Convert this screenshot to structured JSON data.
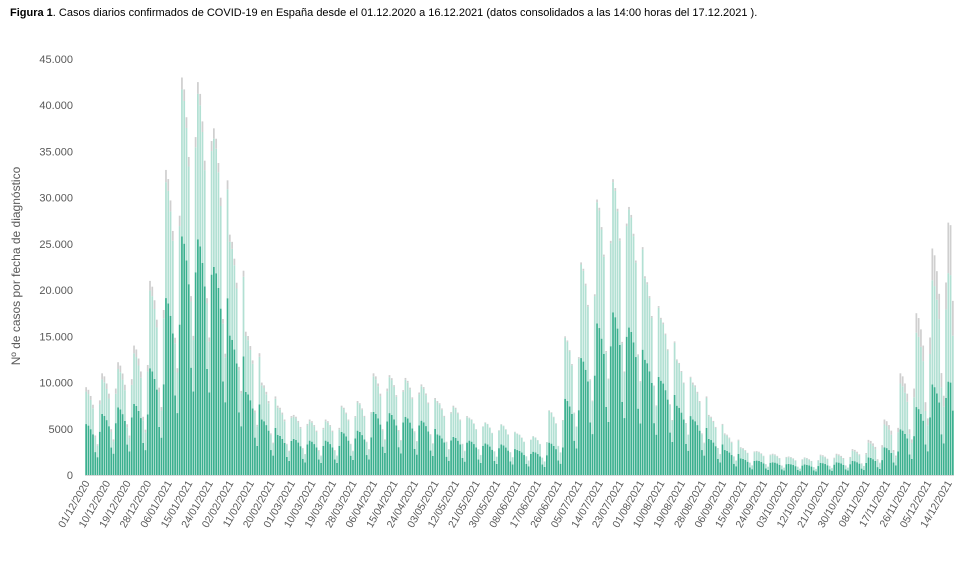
{
  "chart_data": {
    "type": "bar",
    "stacked": true,
    "title_bold": "Figura 1",
    "title": ". Casos diarios confirmados de COVID-19 en España desde el 01.12.2020 a 16.12.2021  (datos consolidados a las 14:00 horas del 17.12.2021 ).",
    "xlabel": "",
    "ylabel": "Nº de casos por fecha de diagnóstico",
    "ylim": [
      0,
      45000
    ],
    "grid": false,
    "legend": "none",
    "y_ticks": [
      0,
      5000,
      10000,
      15000,
      20000,
      25000,
      30000,
      35000,
      40000,
      45000
    ],
    "y_tick_labels": [
      "0",
      "5000",
      "10.000",
      "15.000",
      "20.000",
      "25.000",
      "30.000",
      "35.000",
      "40.000",
      "45.000"
    ],
    "x_start": "01/12/2020",
    "x_end": "16/12/2021",
    "n_days": 381,
    "x_tick_every_days": 9,
    "x_tick_labels": [
      "01/12/2020",
      "10/12/2020",
      "19/12/2020",
      "28/12/2020",
      "06/01/2021",
      "15/01/2021",
      "24/01/2021",
      "02/02/2021",
      "11/02/2021",
      "20/02/2021",
      "01/03/2021",
      "10/03/2021",
      "19/03/2021",
      "28/03/2021",
      "06/04/2021",
      "15/04/2021",
      "24/04/2021",
      "03/05/2021",
      "12/05/2021",
      "21/05/2021",
      "30/05/2021",
      "08/06/2021",
      "17/06/2021",
      "26/06/2021",
      "05/07/2021",
      "14/07/2021",
      "23/07/2021",
      "01/08/2021",
      "10/08/2021",
      "19/08/2021",
      "28/08/2021",
      "06/09/2021",
      "15/09/2021",
      "24/09/2021",
      "03/10/2021",
      "12/10/2021",
      "21/10/2021",
      "30/10/2021",
      "08/11/2021",
      "17/11/2021",
      "26/11/2021",
      "05/12/2021",
      "14/12/2021"
    ],
    "series_colors": [
      "#3bb08f",
      "#b2e0d3",
      "#cfcfcf"
    ],
    "weekly_peak_total": [
      9500,
      11000,
      12200,
      14000,
      21000,
      33000,
      43000,
      42500,
      37500,
      26000,
      15500,
      10000,
      7500,
      6500,
      6000,
      6000,
      7500,
      8000,
      11000,
      10800,
      10500,
      9800,
      8000,
      7500,
      6200,
      5700,
      5500,
      4500,
      4200,
      7000,
      15000,
      23000,
      29800,
      32000,
      29000,
      21500,
      17000,
      12500,
      10000,
      6500,
      4500,
      3000,
      2600,
      2300,
      2000,
      1900,
      2200,
      2300,
      2800,
      3800,
      6000,
      11000,
      17500,
      24500,
      27300
    ],
    "weekly_share_series1": [
      0.58,
      0.6,
      0.6,
      0.55,
      0.55,
      0.58,
      0.6,
      0.6,
      0.6,
      0.58,
      0.58,
      0.6,
      0.58,
      0.6,
      0.62,
      0.62,
      0.62,
      0.6,
      0.62,
      0.62,
      0.6,
      0.6,
      0.55,
      0.55,
      0.6,
      0.6,
      0.6,
      0.6,
      0.6,
      0.5,
      0.55,
      0.55,
      0.55,
      0.55,
      0.55,
      0.58,
      0.6,
      0.6,
      0.6,
      0.6,
      0.6,
      0.6,
      0.6,
      0.6,
      0.6,
      0.6,
      0.6,
      0.6,
      0.55,
      0.5,
      0.5,
      0.45,
      0.42,
      0.4,
      0.37
    ],
    "weekly_share_series3": [
      0.05,
      0.06,
      0.06,
      0.06,
      0.05,
      0.04,
      0.03,
      0.03,
      0.03,
      0.03,
      0.03,
      0.03,
      0.03,
      0.03,
      0.03,
      0.03,
      0.02,
      0.02,
      0.03,
      0.02,
      0.02,
      0.02,
      0.02,
      0.02,
      0.01,
      0.01,
      0.01,
      0.01,
      0.01,
      0.01,
      0.01,
      0.01,
      0.01,
      0.01,
      0.01,
      0.01,
      0.01,
      0.01,
      0.02,
      0.02,
      0.03,
      0.03,
      0.03,
      0.04,
      0.04,
      0.04,
      0.05,
      0.06,
      0.06,
      0.08,
      0.09,
      0.1,
      0.12,
      0.14,
      0.2
    ],
    "weekday_factors_from_tuesday": [
      1.0,
      0.97,
      0.9,
      0.8,
      0.45,
      0.35,
      0.85
    ],
    "last_week_factors": [
      1.0,
      0.99,
      0.69
    ]
  }
}
